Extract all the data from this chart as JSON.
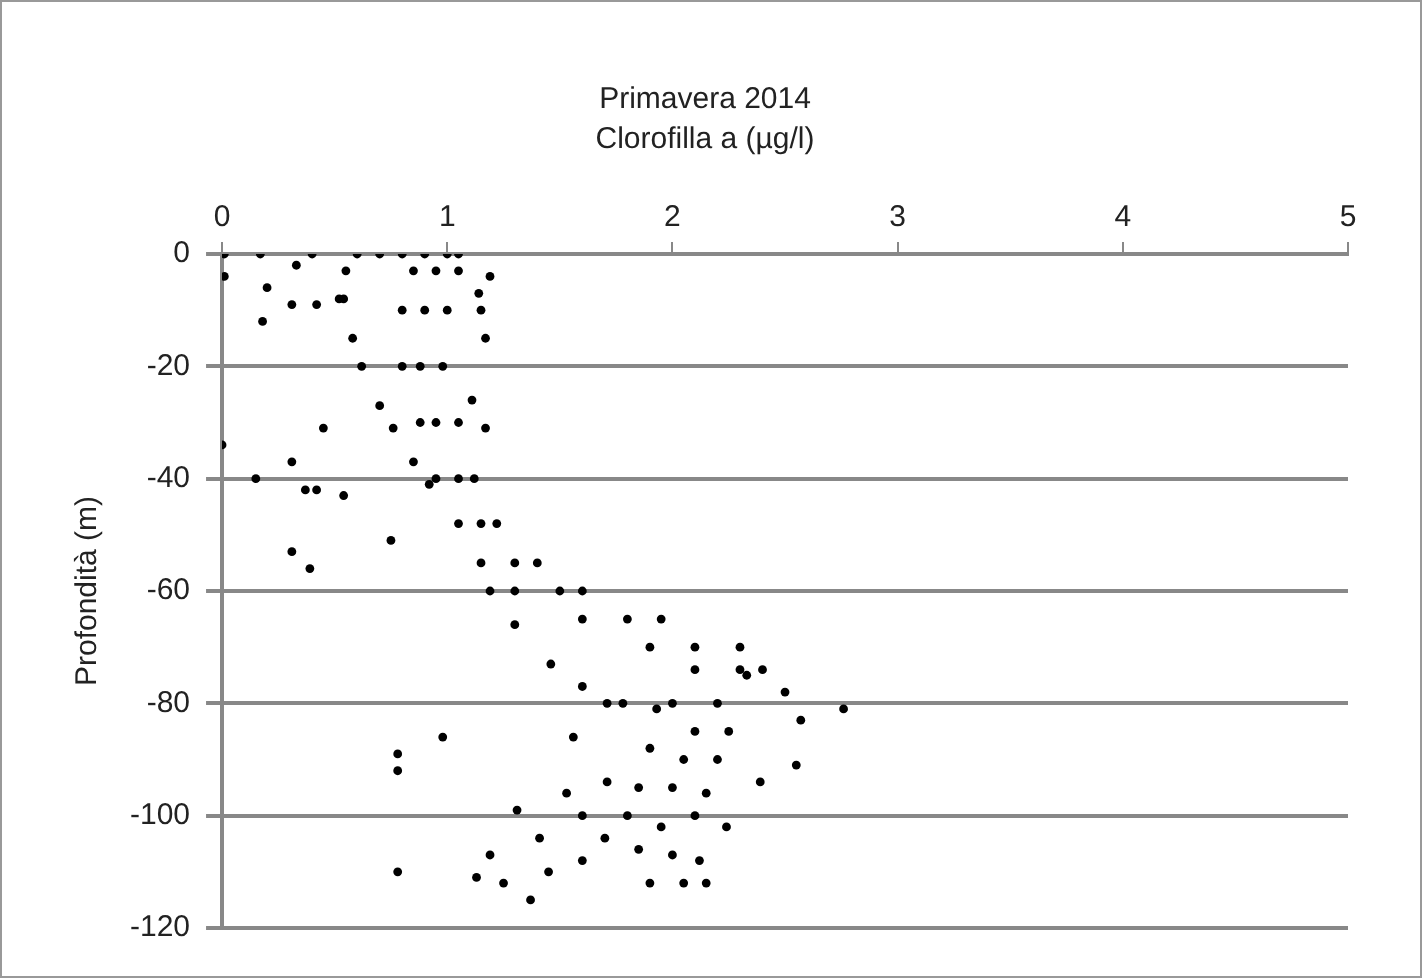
{
  "chart_data": {
    "type": "scatter",
    "title": "Primavera 2014",
    "subtitle": "Clorofilla a (µg/l)",
    "ylabel": "Profondità (m)",
    "xlim": [
      0,
      5
    ],
    "xticks": [
      0,
      1,
      2,
      3,
      4,
      5
    ],
    "ylim": [
      -120,
      0
    ],
    "yticks": [
      -120,
      -100,
      -80,
      -60,
      -40,
      -20,
      0
    ],
    "grid": "y",
    "legend": false,
    "marker": "circle",
    "series": [
      {
        "color": "#000000",
        "x": [
          0.6,
          0.7,
          0.8,
          0.9,
          1.0,
          1.05,
          0.85,
          0.95,
          1.05,
          0.8,
          0.9,
          1.0,
          0.8,
          0.88,
          0.98,
          0.88,
          0.95,
          1.05,
          0.95,
          1.05,
          1.12,
          1.05,
          1.15,
          1.22,
          1.15,
          1.3,
          1.4,
          1.3,
          1.5,
          1.6,
          1.6,
          1.8,
          1.95,
          1.9,
          2.1,
          2.3,
          2.1,
          2.3,
          2.4,
          0.55,
          0.54,
          0.58,
          0.62,
          0.7,
          0.76,
          0.85,
          0.92,
          1.19,
          1.3,
          1.46,
          1.6,
          1.71,
          1.93,
          2.0,
          2.2,
          2.1,
          2.25,
          1.9,
          2.05,
          2.2,
          1.85,
          2.0,
          2.15,
          1.8,
          1.95,
          2.1,
          1.85,
          2.0,
          2.12,
          1.9,
          2.05,
          1.7,
          1.6,
          1.6,
          2.33,
          2.5,
          2.76,
          2.57,
          2.55,
          2.39,
          2.24,
          2.15,
          1.13,
          1.19,
          1.31,
          1.41,
          1.37,
          1.53,
          1.71,
          1.45,
          1.25,
          0.78,
          0.78,
          0.78,
          0.98,
          1.56,
          1.78,
          0.01,
          0.01,
          0.0,
          0.39,
          0.31,
          0.15,
          0.31,
          0.37,
          0.42,
          0.54,
          0.75,
          0.45,
          0.18,
          0.31,
          0.42,
          0.52,
          0.2,
          0.17,
          0.33,
          0.4,
          1.19,
          1.14,
          1.15,
          1.17,
          1.11,
          1.17
        ],
        "values": [
          0,
          0,
          0,
          0,
          0,
          0,
          -3,
          -3,
          -3,
          -10,
          -10,
          -10,
          -20,
          -20,
          -20,
          -30,
          -30,
          -30,
          -40,
          -40,
          -40,
          -48,
          -48,
          -48,
          -55,
          -55,
          -55,
          -60,
          -60,
          -60,
          -65,
          -65,
          -65,
          -70,
          -70,
          -70,
          -74,
          -74,
          -74,
          -3,
          -8,
          -15,
          -20,
          -27,
          -31,
          -37,
          -41,
          -60,
          -66,
          -73,
          -77,
          -80,
          -81,
          -80,
          -80,
          -85,
          -85,
          -88,
          -90,
          -90,
          -95,
          -95,
          -96,
          -100,
          -102,
          -100,
          -106,
          -107,
          -108,
          -112,
          -112,
          -104,
          -108,
          -100,
          -75,
          -78,
          -81,
          -83,
          -91,
          -94,
          -102,
          -112,
          -111,
          -107,
          -99,
          -104,
          -115,
          -96,
          -94,
          -110,
          -112,
          -89,
          -92,
          -110,
          -86,
          -86,
          -80,
          0,
          -4,
          -34,
          -56,
          -53,
          -40,
          -37,
          -42,
          -42,
          -43,
          -51,
          -31,
          -12,
          -9,
          -9,
          -8,
          -6,
          0,
          -2,
          0,
          -4,
          -7,
          -10,
          -15,
          -26,
          -31
        ]
      }
    ]
  }
}
